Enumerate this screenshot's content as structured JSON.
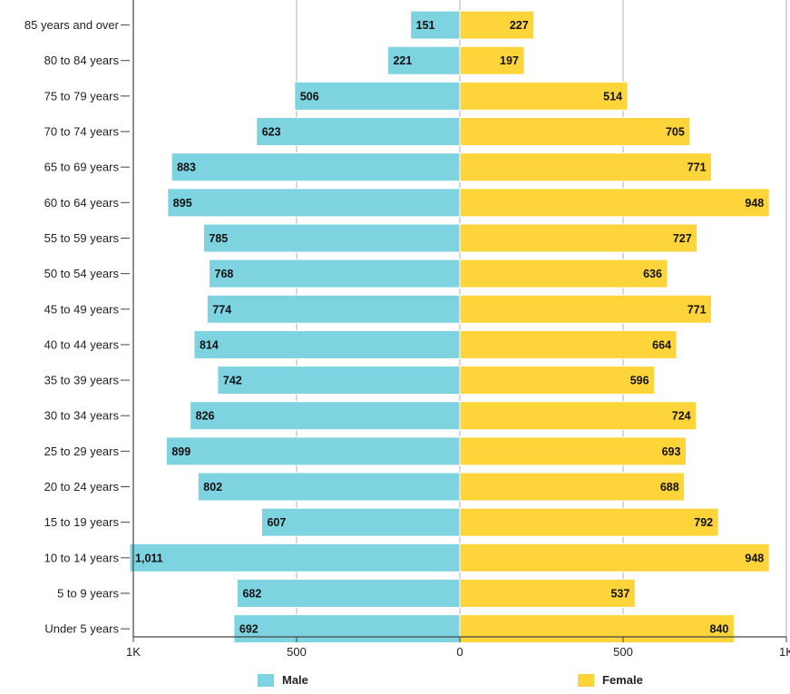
{
  "chart_data": {
    "type": "bar",
    "orientation": "horizontal-diverging",
    "categories": [
      "85 years and over",
      "80 to 84 years",
      "75 to 79 years",
      "70 to 74 years",
      "65 to 69 years",
      "60 to 64 years",
      "55 to 59 years",
      "50 to 54 years",
      "45 to 49 years",
      "40 to 44 years",
      "35 to 39 years",
      "30 to 34 years",
      "25 to 29 years",
      "20 to 24 years",
      "15 to 19 years",
      "10 to 14 years",
      "5 to 9 years",
      "Under 5 years"
    ],
    "series": [
      {
        "name": "Male",
        "color": "#7dd3e0",
        "values": [
          151,
          221,
          506,
          623,
          883,
          895,
          785,
          768,
          774,
          814,
          742,
          826,
          899,
          802,
          607,
          1011,
          682,
          692
        ],
        "labels": [
          "151",
          "221",
          "506",
          "623",
          "883",
          "895",
          "785",
          "768",
          "774",
          "814",
          "742",
          "826",
          "899",
          "802",
          "607",
          "1,011",
          "682",
          "692"
        ]
      },
      {
        "name": "Female",
        "color": "#fdd43a",
        "values": [
          227,
          197,
          514,
          705,
          771,
          948,
          727,
          636,
          771,
          664,
          596,
          724,
          693,
          688,
          792,
          948,
          537,
          840
        ],
        "labels": [
          "227",
          "197",
          "514",
          "705",
          "771",
          "948",
          "727",
          "636",
          "771",
          "664",
          "596",
          "724",
          "693",
          "688",
          "792",
          "948",
          "537",
          "840"
        ]
      }
    ],
    "x_axis": {
      "range": [
        -1000,
        1000
      ],
      "ticks": [
        -1000,
        -500,
        0,
        500,
        1000
      ],
      "tick_labels": [
        "1K",
        "500",
        "0",
        "500",
        "1K"
      ]
    },
    "grid": "vertical",
    "legend": "bottom"
  }
}
